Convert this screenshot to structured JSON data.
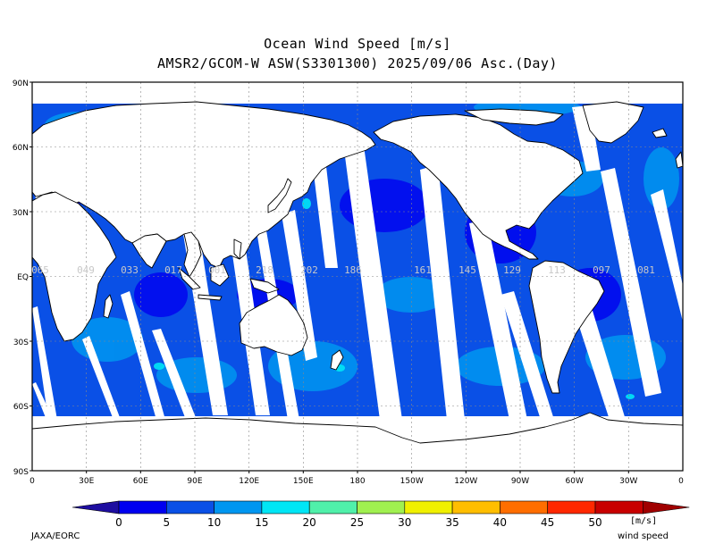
{
  "title": "Ocean Wind Speed [m/s]",
  "subtitle": "AMSR2/GCOM-W ASW(S3301300) 2025/09/06 Asc.(Day)",
  "lat_ticks": [
    "90N",
    "60N",
    "30N",
    "EQ",
    "30S",
    "60S",
    "90S"
  ],
  "lon_ticks": [
    "0",
    "30E",
    "60E",
    "90E",
    "120E",
    "150E",
    "180",
    "150W",
    "120W",
    "90W",
    "60W",
    "30W",
    "0"
  ],
  "swath_times": [
    "065",
    "049",
    "033",
    "017",
    "001",
    "218",
    "202",
    "186",
    "161",
    "145",
    "129",
    "113",
    "097",
    "081"
  ],
  "colorbar": {
    "values": [
      "0",
      "5",
      "10",
      "15",
      "20",
      "25",
      "30",
      "35",
      "40",
      "45",
      "50"
    ],
    "colors": [
      "#1e0ea0",
      "#0000f0",
      "#0a50e6",
      "#0096f0",
      "#00e6f5",
      "#50f0aa",
      "#a0f050",
      "#f0f000",
      "#ffbe00",
      "#ff6e00",
      "#ff2800",
      "#c80000",
      "#a00000"
    ],
    "unit": "[m/s]",
    "label": "wind speed"
  },
  "credit": "JAXA/EORC"
}
